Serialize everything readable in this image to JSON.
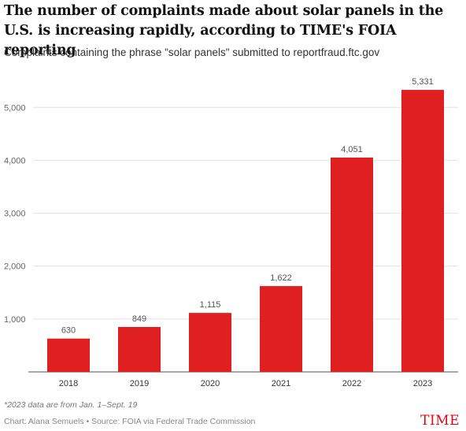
{
  "header": {
    "title": "The number of complaints made about solar panels in the U.S. is increasing rapidly, according to TIME's FOIA reporting",
    "subtitle": "Complaints containing the phrase \"solar panels\" submitted to reportfraud.ftc.gov"
  },
  "chart_data": {
    "type": "bar",
    "categories": [
      "2018",
      "2019",
      "2020",
      "2021",
      "2022",
      "2023"
    ],
    "values": [
      630,
      849,
      1115,
      1622,
      4051,
      5331
    ],
    "value_labels": [
      "630",
      "849",
      "1,115",
      "1,622",
      "4,051",
      "5,331"
    ],
    "ylim": [
      0,
      5600
    ],
    "yticks": [
      1000,
      2000,
      3000,
      4000,
      5000
    ],
    "ytick_labels": [
      "1,000",
      "2,000",
      "3,000",
      "4,000",
      "5,000"
    ],
    "grid": true,
    "bar_color": "#e02020",
    "xlabel": "",
    "ylabel": ""
  },
  "footer": {
    "note": "*2023 data are from Jan. 1–Sept. 19",
    "credit": "Chart: Alana Semuels • Source: FOIA via Federal Trade Commission",
    "logo": "TIME"
  },
  "colors": {
    "accent": "#e02020",
    "logo": "#e30613"
  }
}
